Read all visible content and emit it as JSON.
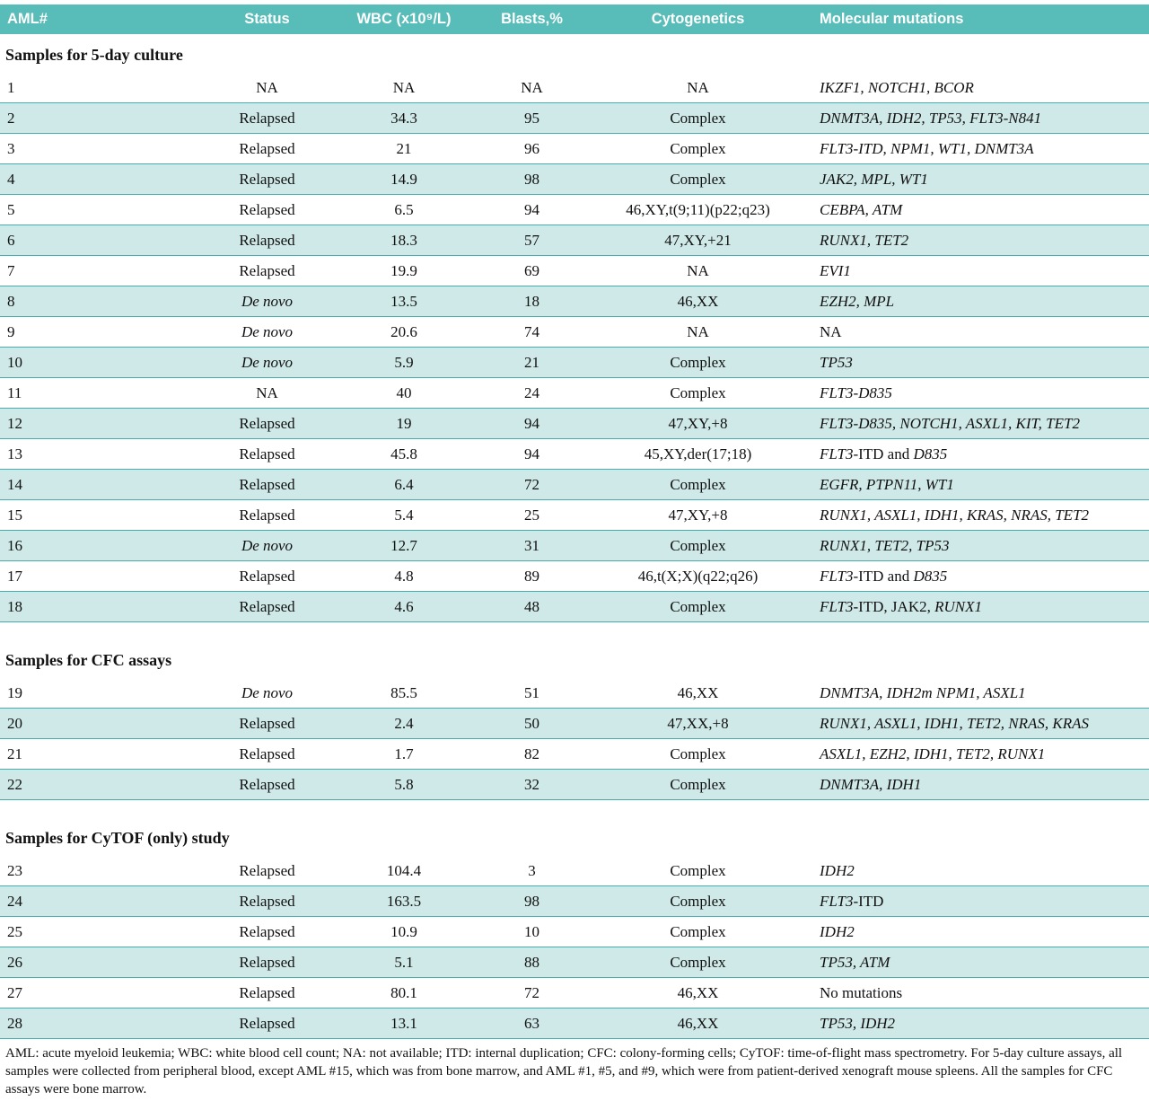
{
  "colors": {
    "header_bg": "#58bcb9",
    "row_shaded_bg": "#cfe9e8",
    "row_border": "#44afac"
  },
  "table": {
    "columns": [
      {
        "label": "AML#",
        "align": "left"
      },
      {
        "label": "Status",
        "align": "center"
      },
      {
        "label": "WBC (x10⁹/L)",
        "align": "center"
      },
      {
        "label": "Blasts,%",
        "align": "center"
      },
      {
        "label": "Cytogenetics",
        "align": "center"
      },
      {
        "label": "Molecular mutations",
        "align": "left"
      }
    ],
    "sections": [
      {
        "title": "Samples for 5-day culture",
        "rows": [
          {
            "aml": "1",
            "status": {
              "t": "NA",
              "i": false
            },
            "wbc": "NA",
            "blasts": "NA",
            "cytogenetics": "NA",
            "mutations": [
              {
                "t": "IKZF1, NOTCH1, BCOR",
                "i": true
              }
            ]
          },
          {
            "aml": "2",
            "status": {
              "t": "Relapsed",
              "i": false
            },
            "wbc": "34.3",
            "blasts": "95",
            "cytogenetics": "Complex",
            "mutations": [
              {
                "t": "DNMT3A, IDH2, TP53, FLT3-N841",
                "i": true
              }
            ]
          },
          {
            "aml": "3",
            "status": {
              "t": "Relapsed",
              "i": false
            },
            "wbc": "21",
            "blasts": "96",
            "cytogenetics": "Complex",
            "mutations": [
              {
                "t": "FLT3-ITD, NPM1, WT1, DNMT3A",
                "i": true
              }
            ]
          },
          {
            "aml": "4",
            "status": {
              "t": "Relapsed",
              "i": false
            },
            "wbc": "14.9",
            "blasts": "98",
            "cytogenetics": "Complex",
            "mutations": [
              {
                "t": "JAK2, MPL, WT1",
                "i": true
              }
            ]
          },
          {
            "aml": "5",
            "status": {
              "t": "Relapsed",
              "i": false
            },
            "wbc": "6.5",
            "blasts": "94",
            "cytogenetics": "46,XY,t(9;11)(p22;q23)",
            "mutations": [
              {
                "t": "CEBPA, ATM",
                "i": true
              }
            ]
          },
          {
            "aml": "6",
            "status": {
              "t": "Relapsed",
              "i": false
            },
            "wbc": "18.3",
            "blasts": "57",
            "cytogenetics": "47,XY,+21",
            "mutations": [
              {
                "t": "RUNX1, TET2",
                "i": true
              }
            ]
          },
          {
            "aml": "7",
            "status": {
              "t": "Relapsed",
              "i": false
            },
            "wbc": "19.9",
            "blasts": "69",
            "cytogenetics": "NA",
            "mutations": [
              {
                "t": "EVI1",
                "i": true
              }
            ]
          },
          {
            "aml": "8",
            "status": {
              "t": "De novo",
              "i": true
            },
            "wbc": "13.5",
            "blasts": "18",
            "cytogenetics": "46,XX",
            "mutations": [
              {
                "t": "EZH2, MPL",
                "i": true
              }
            ]
          },
          {
            "aml": "9",
            "status": {
              "t": "De novo",
              "i": true
            },
            "wbc": "20.6",
            "blasts": "74",
            "cytogenetics": "NA",
            "mutations": [
              {
                "t": "NA",
                "i": false
              }
            ]
          },
          {
            "aml": "10",
            "status": {
              "t": "De novo",
              "i": true
            },
            "wbc": "5.9",
            "blasts": "21",
            "cytogenetics": "Complex",
            "mutations": [
              {
                "t": "TP53",
                "i": true
              }
            ]
          },
          {
            "aml": "11",
            "status": {
              "t": "NA",
              "i": false
            },
            "wbc": "40",
            "blasts": "24",
            "cytogenetics": "Complex",
            "mutations": [
              {
                "t": "FLT3-D835",
                "i": true
              }
            ]
          },
          {
            "aml": "12",
            "status": {
              "t": "Relapsed",
              "i": false
            },
            "wbc": "19",
            "blasts": "94",
            "cytogenetics": "47,XY,+8",
            "mutations": [
              {
                "t": "FLT3-D835, NOTCH1, ASXL1, KIT, TET2",
                "i": true
              }
            ]
          },
          {
            "aml": "13",
            "status": {
              "t": "Relapsed",
              "i": false
            },
            "wbc": "45.8",
            "blasts": "94",
            "cytogenetics": "45,XY,der(17;18)",
            "mutations": [
              {
                "t": "FLT3",
                "i": true
              },
              {
                "t": "-ITD and ",
                "i": false
              },
              {
                "t": "D835",
                "i": true
              }
            ]
          },
          {
            "aml": "14",
            "status": {
              "t": "Relapsed",
              "i": false
            },
            "wbc": "6.4",
            "blasts": "72",
            "cytogenetics": "Complex",
            "mutations": [
              {
                "t": "EGFR, PTPN11, WT1",
                "i": true
              }
            ]
          },
          {
            "aml": "15",
            "status": {
              "t": "Relapsed",
              "i": false
            },
            "wbc": "5.4",
            "blasts": "25",
            "cytogenetics": "47,XY,+8",
            "mutations": [
              {
                "t": "RUNX1, ASXL1, IDH1, KRAS, NRAS, TET2",
                "i": true
              }
            ]
          },
          {
            "aml": "16",
            "status": {
              "t": "De novo",
              "i": true
            },
            "wbc": "12.7",
            "blasts": "31",
            "cytogenetics": "Complex",
            "mutations": [
              {
                "t": "RUNX1, TET2, TP53",
                "i": true
              }
            ]
          },
          {
            "aml": "17",
            "status": {
              "t": "Relapsed",
              "i": false
            },
            "wbc": "4.8",
            "blasts": "89",
            "cytogenetics": "46,t(X;X)(q22;q26)",
            "mutations": [
              {
                "t": "FLT3",
                "i": true
              },
              {
                "t": "-ITD and ",
                "i": false
              },
              {
                "t": "D835",
                "i": true
              }
            ]
          },
          {
            "aml": "18",
            "status": {
              "t": "Relapsed",
              "i": false
            },
            "wbc": "4.6",
            "blasts": "48",
            "cytogenetics": "Complex",
            "mutations": [
              {
                "t": "FLT3",
                "i": true
              },
              {
                "t": "-ITD, JAK2, ",
                "i": false
              },
              {
                "t": "RUNX1",
                "i": true
              }
            ]
          }
        ]
      },
      {
        "title": "Samples for CFC assays",
        "rows": [
          {
            "aml": "19",
            "status": {
              "t": "De novo",
              "i": true
            },
            "wbc": "85.5",
            "blasts": "51",
            "cytogenetics": "46,XX",
            "mutations": [
              {
                "t": "DNMT3A, IDH2m NPM1, ASXL1",
                "i": true
              }
            ]
          },
          {
            "aml": "20",
            "status": {
              "t": "Relapsed",
              "i": false
            },
            "wbc": "2.4",
            "blasts": "50",
            "cytogenetics": "47,XX,+8",
            "mutations": [
              {
                "t": "RUNX1, ASXL1, IDH1, TET2, NRAS, KRAS",
                "i": true
              }
            ]
          },
          {
            "aml": "21",
            "status": {
              "t": "Relapsed",
              "i": false
            },
            "wbc": "1.7",
            "blasts": "82",
            "cytogenetics": "Complex",
            "mutations": [
              {
                "t": "ASXL1, EZH2, IDH1, TET2, RUNX1",
                "i": true
              }
            ]
          },
          {
            "aml": "22",
            "status": {
              "t": "Relapsed",
              "i": false
            },
            "wbc": "5.8",
            "blasts": "32",
            "cytogenetics": "Complex",
            "mutations": [
              {
                "t": "DNMT3A, IDH1",
                "i": true
              }
            ]
          }
        ]
      },
      {
        "title": "Samples for CyTOF (only) study",
        "rows": [
          {
            "aml": "23",
            "status": {
              "t": "Relapsed",
              "i": false
            },
            "wbc": "104.4",
            "blasts": "3",
            "cytogenetics": "Complex",
            "mutations": [
              {
                "t": "IDH2",
                "i": true
              }
            ]
          },
          {
            "aml": "24",
            "status": {
              "t": "Relapsed",
              "i": false
            },
            "wbc": "163.5",
            "blasts": "98",
            "cytogenetics": "Complex",
            "mutations": [
              {
                "t": "FLT3",
                "i": true
              },
              {
                "t": "-ITD",
                "i": false
              }
            ]
          },
          {
            "aml": "25",
            "status": {
              "t": "Relapsed",
              "i": false
            },
            "wbc": "10.9",
            "blasts": "10",
            "cytogenetics": "Complex",
            "mutations": [
              {
                "t": "IDH2",
                "i": true
              }
            ]
          },
          {
            "aml": "26",
            "status": {
              "t": "Relapsed",
              "i": false
            },
            "wbc": "5.1",
            "blasts": "88",
            "cytogenetics": "Complex",
            "mutations": [
              {
                "t": "TP53, ATM",
                "i": true
              }
            ]
          },
          {
            "aml": "27",
            "status": {
              "t": "Relapsed",
              "i": false
            },
            "wbc": "80.1",
            "blasts": "72",
            "cytogenetics": "46,XX",
            "mutations": [
              {
                "t": "No mutations",
                "i": false
              }
            ]
          },
          {
            "aml": "28",
            "status": {
              "t": "Relapsed",
              "i": false
            },
            "wbc": "13.1",
            "blasts": "63",
            "cytogenetics": "46,XX",
            "mutations": [
              {
                "t": "TP53, IDH2",
                "i": true
              }
            ]
          }
        ]
      }
    ],
    "footnote": "AML: acute myeloid leukemia; WBC: white blood cell count; NA: not available; ITD: internal duplication; CFC: colony-forming cells; CyTOF: time-of-flight mass spectrometry. For 5-day culture assays, all samples were collected from peripheral blood, except AML #15, which was from bone marrow, and AML #1, #5, and #9, which were from patient-derived xenograft mouse spleens. All the samples for CFC assays were bone marrow."
  }
}
